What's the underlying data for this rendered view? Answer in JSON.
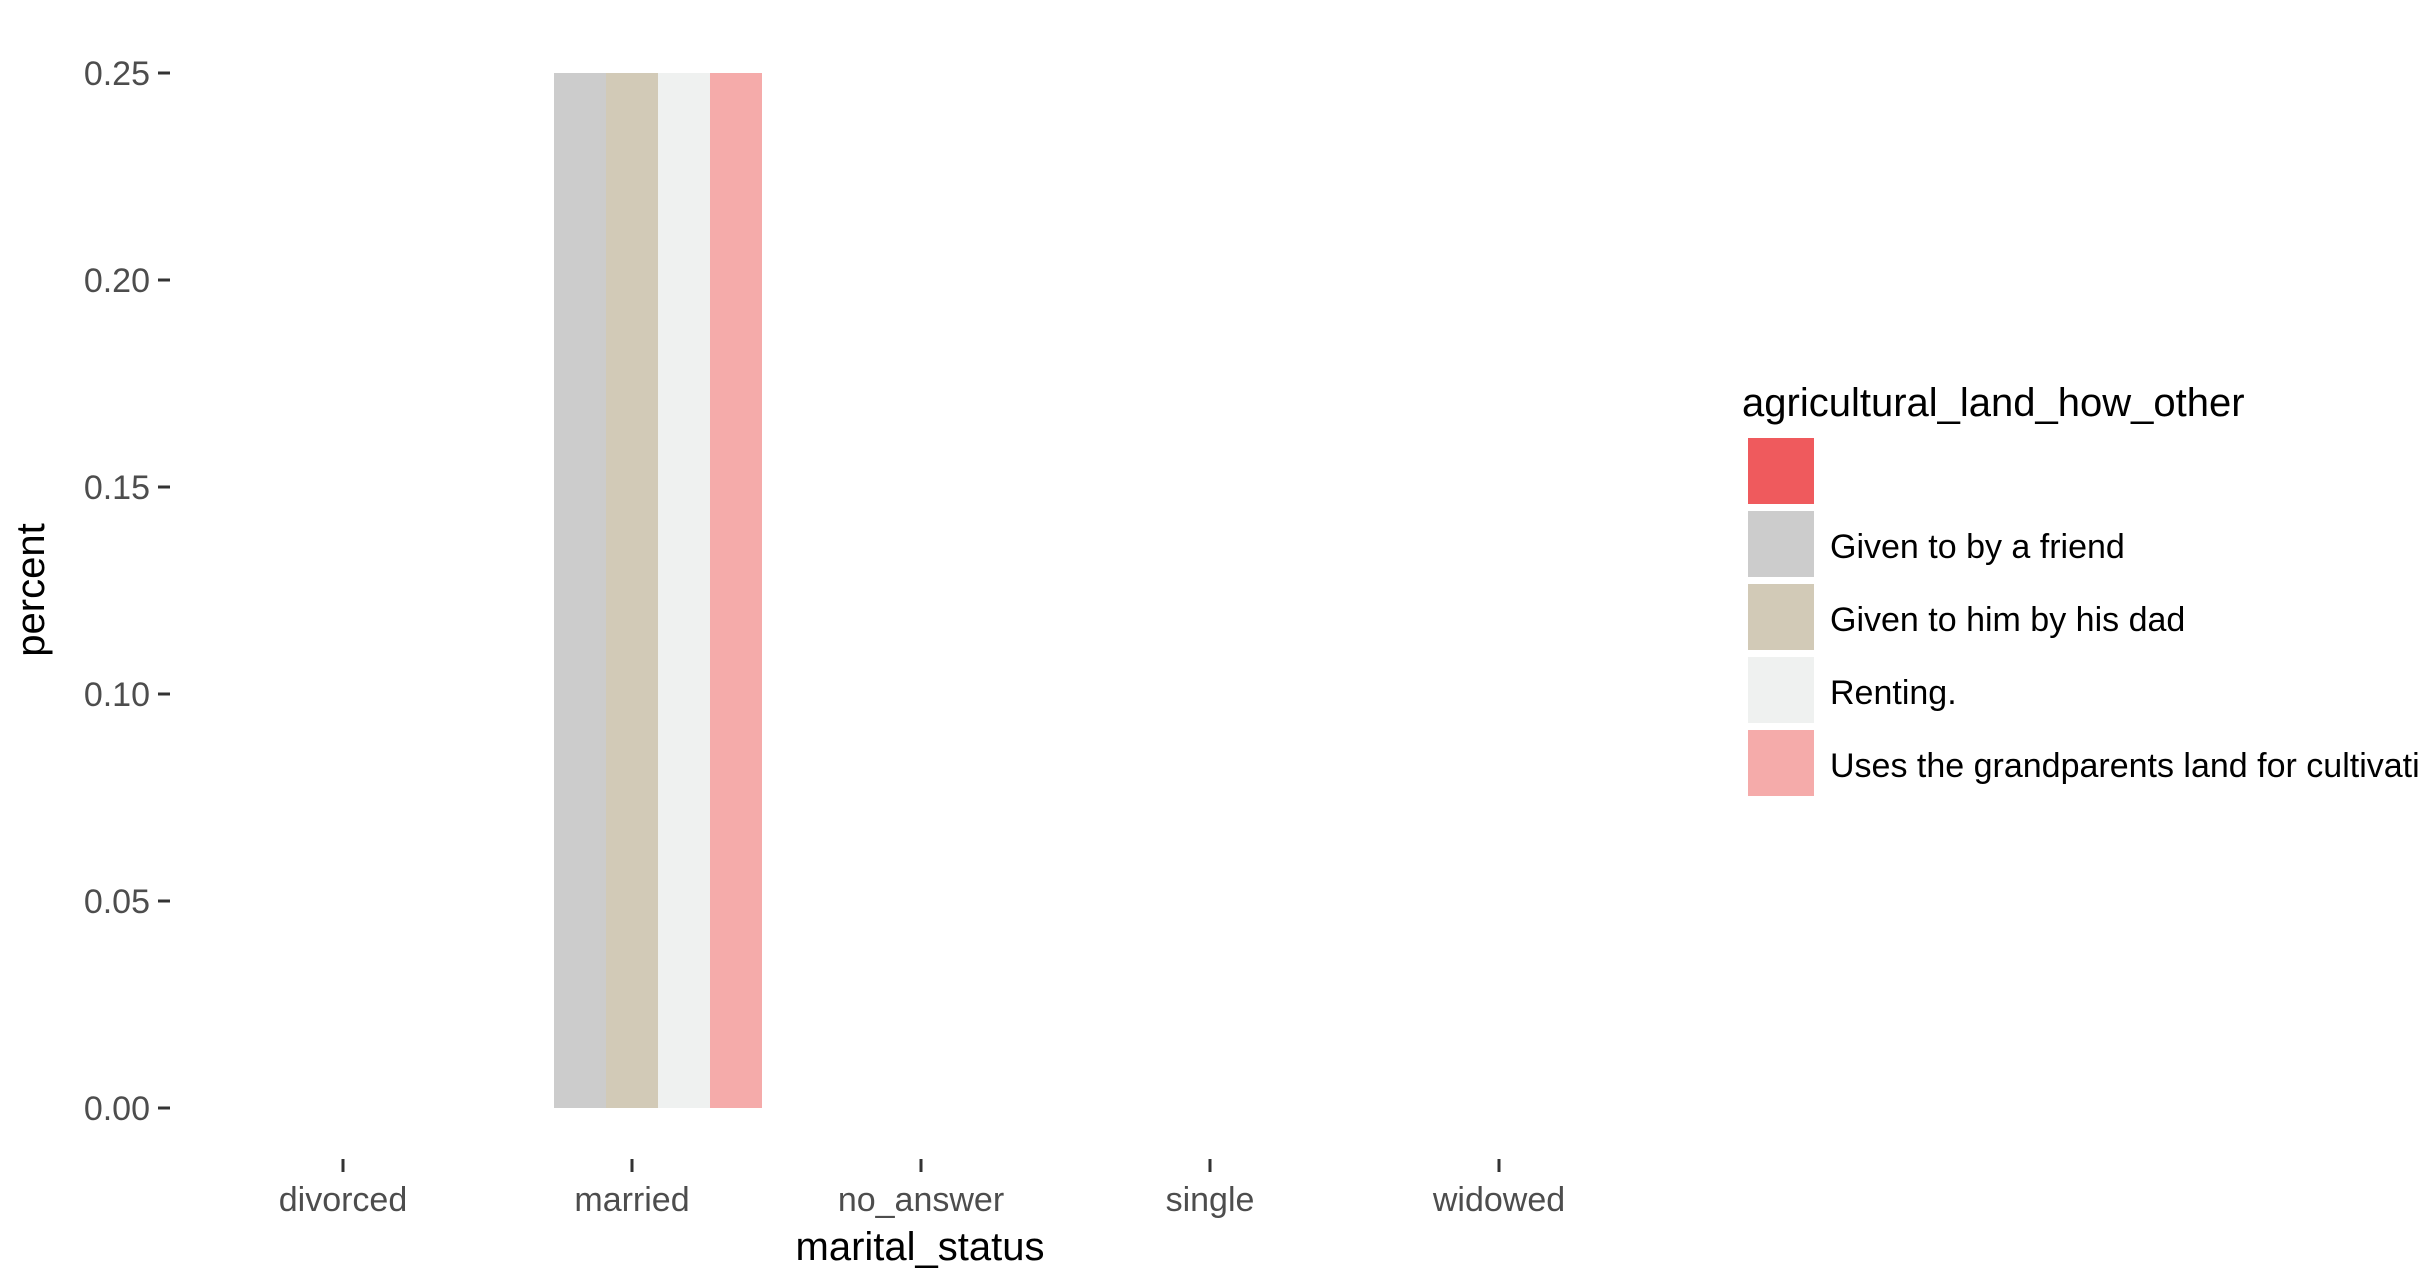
{
  "chart_data": {
    "type": "bar",
    "xlabel": "marital_status",
    "ylabel": "percent",
    "categories": [
      "divorced",
      "married",
      "no_answer",
      "single",
      "widowed"
    ],
    "ylim": [
      0,
      0.25
    ],
    "yticks": [
      "0.00",
      "0.05",
      "0.10",
      "0.15",
      "0.20",
      "0.25"
    ],
    "grid": false,
    "legend": {
      "title": "agricultural_land_how_other",
      "placement": "right"
    },
    "series": [
      {
        "name": "",
        "color": "#ef5a5d",
        "values": [
          0,
          0,
          0,
          0,
          0
        ]
      },
      {
        "name": "Given to by  a friend",
        "color": "#cccccc",
        "values": [
          0,
          0.25,
          0,
          0,
          0
        ]
      },
      {
        "name": "Given to him by his dad",
        "color": "#d2cab7",
        "values": [
          0,
          0.25,
          0,
          0,
          0
        ]
      },
      {
        "name": "Renting.",
        "color": "#eff1f0",
        "values": [
          0,
          0.25,
          0,
          0,
          0
        ]
      },
      {
        "name": "Uses the grandparents land for cultivation",
        "color": "#f5abaa",
        "values": [
          0,
          0.25,
          0,
          0,
          0
        ]
      }
    ]
  }
}
